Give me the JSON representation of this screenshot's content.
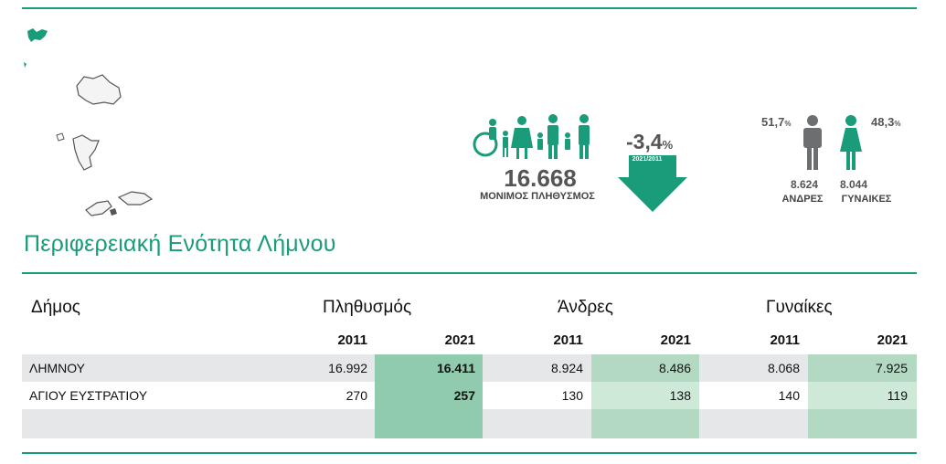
{
  "header": {
    "title": "Περιφερειακή Ενότητα Λήμνου"
  },
  "infographic": {
    "population_value": "16.668",
    "population_label": "ΜΟΝΙΜΟΣ ΠΛΗΘΥΣΜΟΣ",
    "change_value": "-3,4",
    "change_unit": "%",
    "change_period": "2021/2011",
    "male_pct": "51,7",
    "female_pct": "48,3",
    "pct_unit": "%",
    "male_count": "8.624",
    "female_count": "8.044",
    "male_label": "ΑΝΔΡΕΣ",
    "female_label": "ΓΥΝΑΙΚΕΣ"
  },
  "table": {
    "col_municipality": "Δήμος",
    "group_population": "Πληθυσμός",
    "group_men": "Άνδρες",
    "group_women": "Γυναίκες",
    "year_a": "2011",
    "year_b": "2021",
    "rows": [
      {
        "name": "ΛΗΜΝΟΥ",
        "pop2011": "16.992",
        "pop2021": "16.411",
        "men2011": "8.924",
        "men2021": "8.486",
        "women2011": "8.068",
        "women2021": "7.925"
      },
      {
        "name": "ΑΓΙΟΥ ΕΥΣΤΡΑΤΙΟΥ",
        "pop2011": "270",
        "pop2021": "257",
        "men2011": "130",
        "men2021": "138",
        "women2011": "140",
        "women2021": "119"
      }
    ]
  },
  "colors": {
    "accent": "#1a9b7a",
    "icon_grey": "#6d6e70",
    "row_grey": "#e6e7e8"
  }
}
